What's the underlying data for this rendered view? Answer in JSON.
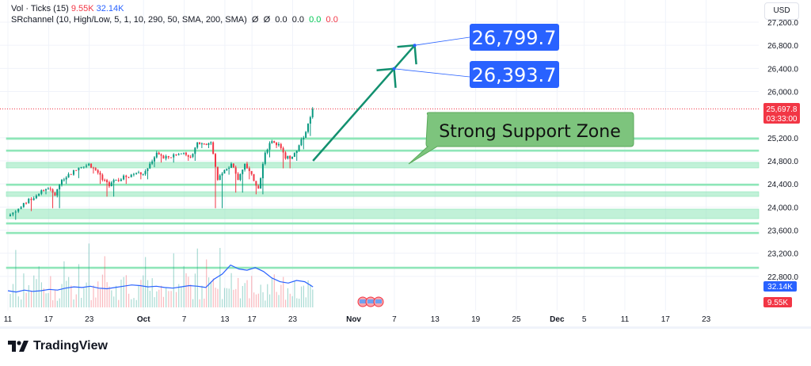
{
  "legend": {
    "vol_label": "Vol · Ticks (15)",
    "vol_value_1": "9.55K",
    "vol_value_2": "32.14K",
    "sr_label": "SRchannel (10, High/Low, 5, 1, 10, 290, 50, SMA, 200, SMA)",
    "sr_values": [
      "Ø",
      "Ø",
      "0.0",
      "0.0",
      "0.0",
      "0.0"
    ]
  },
  "currency_button": "USD",
  "brand": "TradingView",
  "colors": {
    "up": "#089981",
    "down": "#f23645",
    "zone": "#8ee6b8",
    "arrow": "#12906f",
    "target_label": "#2962ff",
    "callout": "#7dc47d",
    "vol_ma": "#2962ff"
  },
  "chart_data": {
    "type": "candlestick",
    "ylim": [
      22600,
      27350
    ],
    "y_ticks": [
      "27,200.0",
      "26,800.0",
      "26,400.0",
      "26,000.0",
      "25,200.0",
      "24,800.0",
      "24,400.0",
      "24,000.0",
      "23,600.0",
      "23,200.0",
      "22,800.0"
    ],
    "y_tick_values": [
      27200,
      26800,
      26400,
      26000,
      25200,
      24800,
      24400,
      24000,
      23600,
      23200,
      22800
    ],
    "x_ticks": [
      "11",
      "17",
      "23",
      "Oct",
      "7",
      "13",
      "17",
      "23",
      "Nov",
      "7",
      "13",
      "19",
      "25",
      "Dec",
      "5",
      "11",
      "17",
      "23"
    ],
    "x_tick_dates": [
      "09-11",
      "09-17",
      "09-23",
      "10-01",
      "10-07",
      "10-13",
      "10-17",
      "10-23",
      "11-01",
      "11-07",
      "11-13",
      "11-19",
      "11-25",
      "12-01",
      "12-05",
      "12-11",
      "12-17",
      "12-23"
    ],
    "price_path": [
      {
        "date": "09-11",
        "close": 23840,
        "low": 23780
      },
      {
        "date": "09-13",
        "close": 24000,
        "low": 23930
      },
      {
        "date": "09-16",
        "close": 24290,
        "low": 24220
      },
      {
        "date": "09-17",
        "close": 24320,
        "low": 24260
      },
      {
        "date": "09-18",
        "close": 24200,
        "low": 23980
      },
      {
        "date": "09-19",
        "close": 24470,
        "low": 24400
      },
      {
        "date": "09-20",
        "close": 24570,
        "low": 24500
      },
      {
        "date": "09-23",
        "close": 24750,
        "low": 24690
      },
      {
        "date": "09-24",
        "close": 24640,
        "low": 24580
      },
      {
        "date": "09-25",
        "close": 24470,
        "low": 24400
      },
      {
        "date": "09-26",
        "close": 24360,
        "low": 24180
      },
      {
        "date": "09-27",
        "close": 24470,
        "low": 24400
      },
      {
        "date": "09-30",
        "close": 24590,
        "low": 24520
      },
      {
        "date": "10-01",
        "close": 24570,
        "low": 24480
      },
      {
        "date": "10-02",
        "close": 24750,
        "low": 24690
      },
      {
        "date": "10-03",
        "close": 24940,
        "low": 24870
      },
      {
        "date": "10-04",
        "close": 24840,
        "low": 24770
      },
      {
        "date": "10-07",
        "close": 24940,
        "low": 24870
      },
      {
        "date": "10-08",
        "close": 24870,
        "low": 24800
      },
      {
        "date": "10-09",
        "close": 25120,
        "low": 25050
      },
      {
        "date": "10-10",
        "close": 25090,
        "low": 25020
      },
      {
        "date": "10-11",
        "close": 25120,
        "low": 25050
      },
      {
        "date": "10-12",
        "close": 24470,
        "low": 23980
      },
      {
        "date": "10-13",
        "close": 24640,
        "low": 24560
      },
      {
        "date": "10-14",
        "close": 24750,
        "low": 24680
      },
      {
        "date": "10-15",
        "close": 24470,
        "low": 24250
      },
      {
        "date": "10-16",
        "close": 24750,
        "low": 24670
      },
      {
        "date": "10-17",
        "close": 24570,
        "low": 24480
      },
      {
        "date": "10-18",
        "close": 24320,
        "low": 24220
      },
      {
        "date": "10-19",
        "close": 24940,
        "low": 24860
      },
      {
        "date": "10-20",
        "close": 25140,
        "low": 25070
      },
      {
        "date": "10-21",
        "close": 25090,
        "low": 25020
      },
      {
        "date": "10-22",
        "close": 24840,
        "low": 24670
      },
      {
        "date": "10-23",
        "close": 24870,
        "low": 24800
      },
      {
        "date": "10-24",
        "close": 25070,
        "low": 25000
      },
      {
        "date": "10-25",
        "close": 25300,
        "low": 25230
      },
      {
        "date": "10-26",
        "close": 25697.8,
        "low": 25620
      }
    ],
    "last_price": "25,697.8",
    "countdown": "03:33:00",
    "support_resistance_levels": [
      {
        "from": 25170,
        "to": 25200
      },
      {
        "from": 24965,
        "to": 24990
      },
      {
        "from": 24677,
        "to": 24773
      },
      {
        "from": 24375,
        "to": 24400
      },
      {
        "from": 24183,
        "to": 24265
      },
      {
        "from": 23799,
        "to": 23964
      },
      {
        "from": 23705,
        "to": 23730
      },
      {
        "from": 23540,
        "to": 23565
      },
      {
        "from": 22935,
        "to": 22962
      }
    ],
    "volume": {
      "unit": "K",
      "ma_label": "32.14K",
      "last_label": "9.55K",
      "ma_value": 32.14,
      "last_value": 9.55,
      "ma_path": [
        26,
        24,
        27,
        25,
        26,
        28,
        27,
        30,
        32,
        31,
        33,
        30,
        29,
        31,
        33,
        35,
        34,
        32,
        33,
        31,
        30,
        32,
        34,
        33,
        31,
        44,
        52,
        66,
        60,
        58,
        62,
        56,
        46,
        40,
        38,
        42,
        40,
        32
      ]
    },
    "annotations": {
      "targets": [
        {
          "price": 26799.7,
          "label": "26,799.7"
        },
        {
          "price": 26393.7,
          "label": "26,393.7"
        }
      ],
      "callout": "Strong Support Zone",
      "arrow": {
        "from_date": "10-26",
        "from_price": 24800,
        "to_date": "11-10",
        "to_price": 26799.7
      }
    }
  }
}
